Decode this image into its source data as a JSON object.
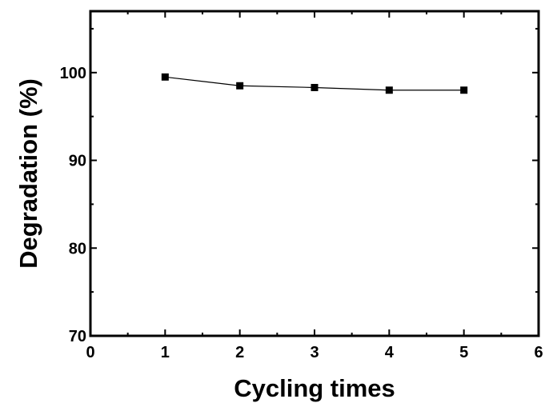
{
  "chart_data": {
    "type": "line",
    "title": "",
    "xlabel": "Cycling times",
    "ylabel": "Degradation (%)",
    "xlim": [
      0,
      6
    ],
    "ylim": [
      70,
      107
    ],
    "x_ticks": [
      0,
      1,
      2,
      3,
      4,
      5,
      6
    ],
    "y_ticks": [
      70,
      80,
      90,
      100
    ],
    "grid": false,
    "legend": "none",
    "series": [
      {
        "x": [
          1,
          2,
          3,
          4,
          5
        ],
        "y": [
          99.5,
          98.5,
          98.3,
          98.0,
          98.0
        ],
        "marker": "square",
        "color": "#000000"
      }
    ]
  }
}
